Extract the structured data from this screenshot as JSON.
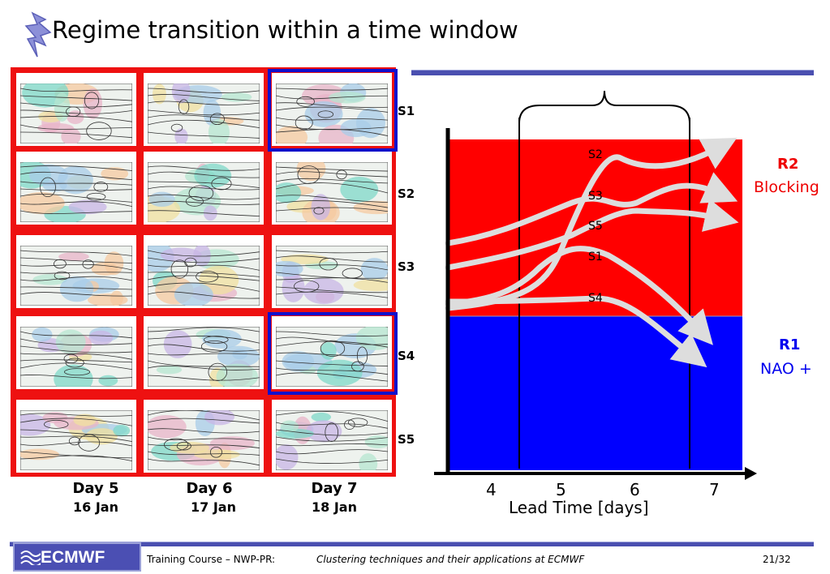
{
  "title": "Regime transition within a time window",
  "grid": {
    "row_labels": [
      "S1",
      "S2",
      "S3",
      "S4",
      "S5"
    ],
    "days": [
      {
        "day": "Day 5",
        "date": "16 Jan"
      },
      {
        "day": "Day 6",
        "date": "17 Jan"
      },
      {
        "day": "Day 7",
        "date": "18 Jan"
      }
    ]
  },
  "chart_data": {
    "type": "line",
    "xlabel": "Lead Time [days]",
    "x_ticks": [
      "4",
      "5",
      "6",
      "7"
    ],
    "regions": [
      {
        "code": "R2",
        "name": "Blocking",
        "color": "#ff0000"
      },
      {
        "code": "R1",
        "name": "NAO +",
        "color": "#0000ff"
      }
    ],
    "series_labels": [
      "S2",
      "S3",
      "S5",
      "S1",
      "S4"
    ]
  },
  "footer": {
    "logo": "ECMWF",
    "course": "Training Course – NWP-PR:",
    "topic": "Clustering techniques and their applications at ECMWF",
    "page": "21/32"
  }
}
